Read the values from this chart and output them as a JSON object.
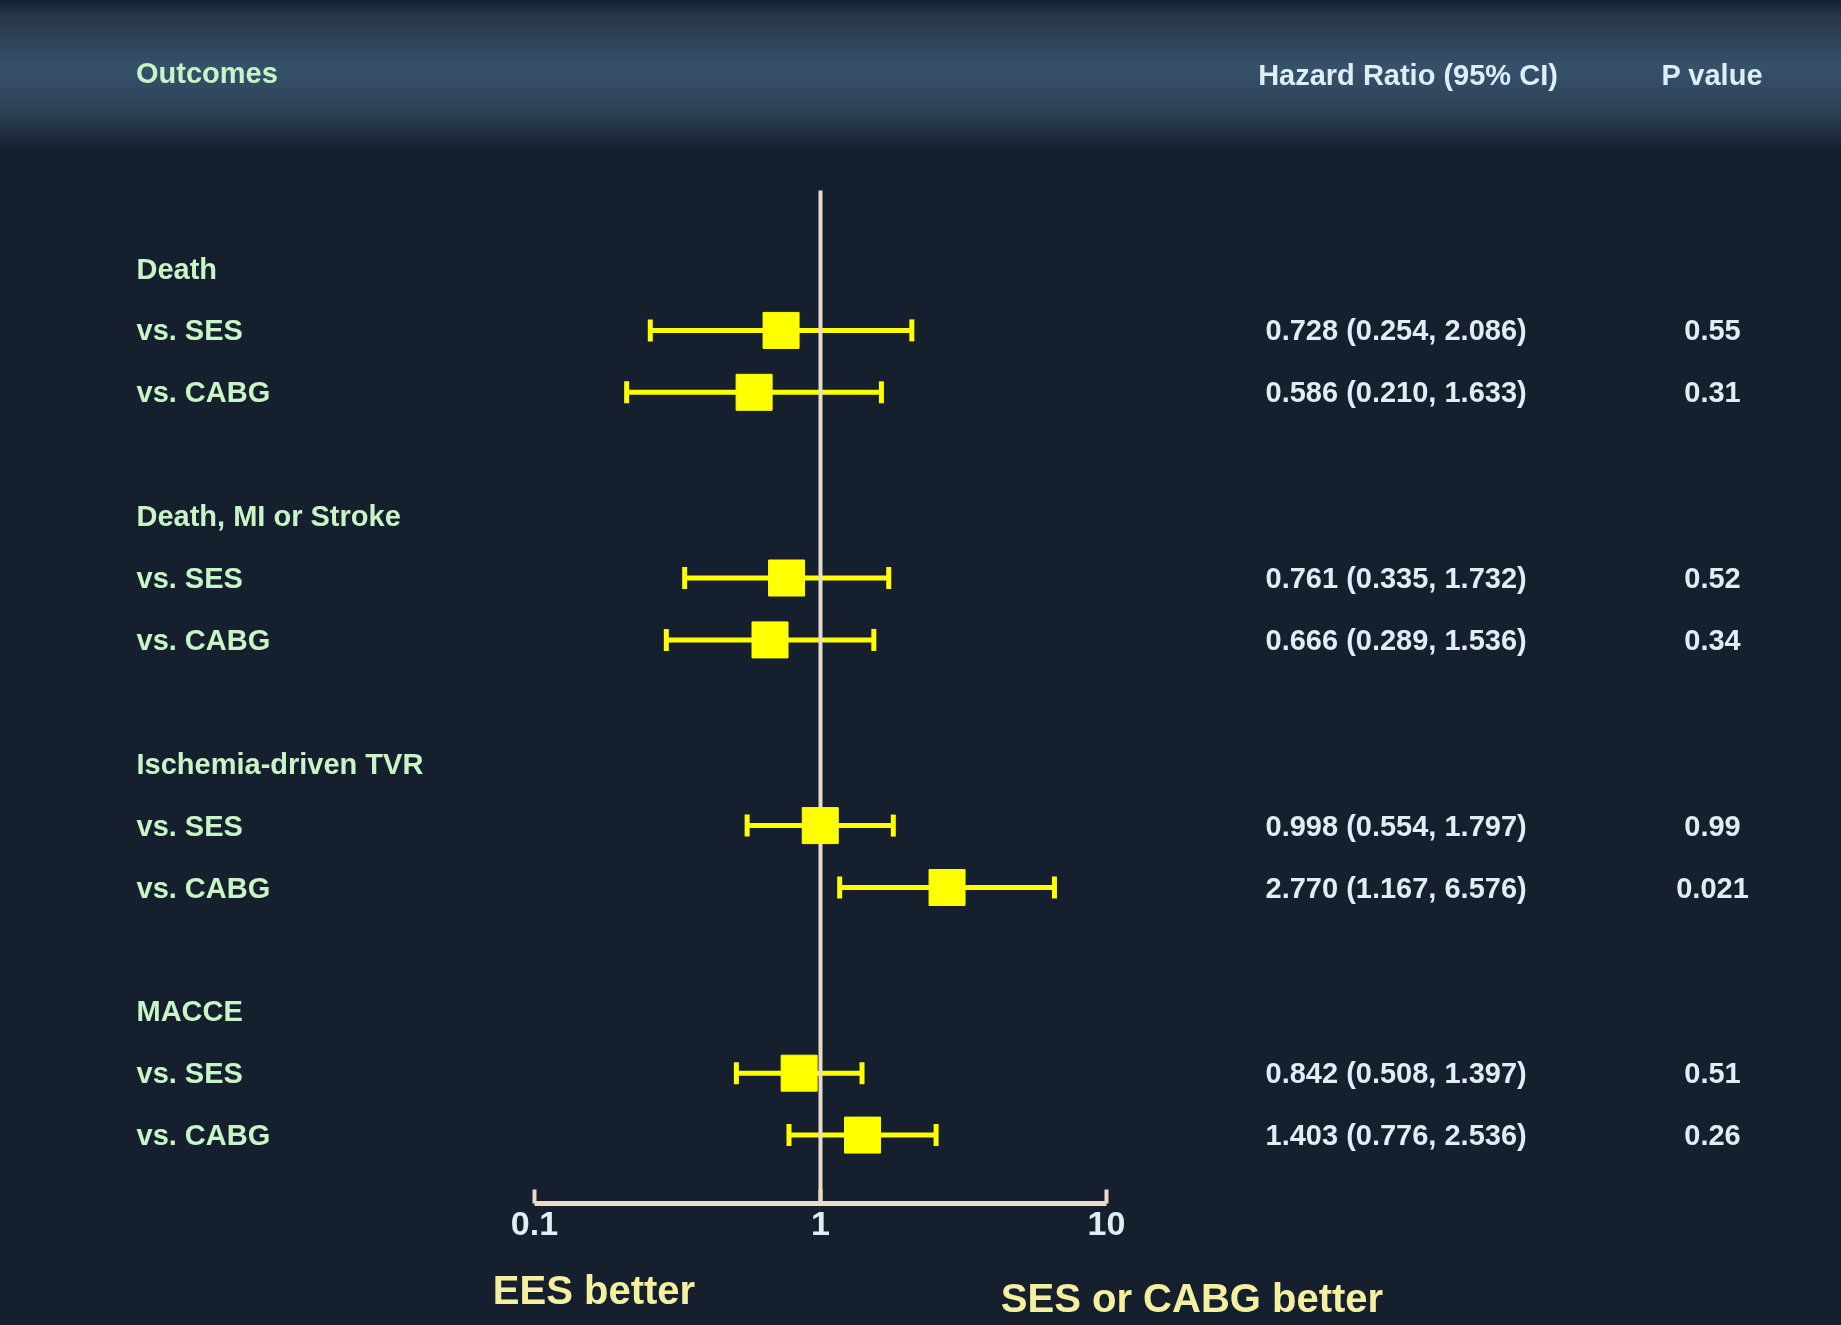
{
  "chart_data": {
    "type": "scatter",
    "orientation": "horizontal",
    "ylabel": "Outcomes",
    "categories": [
      "Death",
      "vs. SES",
      "vs. CABG",
      null,
      "Death, MI or Stroke",
      "vs. SES",
      "vs. CABG",
      null,
      "Ischemia-driven TVR",
      "vs. SES",
      "vs. CABG",
      null,
      "MACCE",
      "vs. SES",
      "vs. CABG"
    ],
    "values": [
      null,
      0.728,
      0.586,
      null,
      null,
      0.761,
      0.666,
      null,
      null,
      0.998,
      2.77,
      null,
      null,
      0.842,
      1.403
    ],
    "errors": [
      null,
      [
        0.254,
        2.086
      ],
      [
        0.21,
        1.633
      ],
      null,
      null,
      [
        0.335,
        1.732
      ],
      [
        0.289,
        1.536
      ],
      null,
      null,
      [
        0.554,
        1.797
      ],
      [
        1.167,
        6.576
      ],
      null,
      null,
      [
        0.508,
        1.397
      ],
      [
        0.776,
        2.536
      ]
    ],
    "value_labels": [
      null,
      "0.728 (0.254, 2.086)",
      "0.586 (0.210, 1.633)",
      null,
      null,
      "0.761 (0.335, 1.732)",
      "0.666 (0.289, 1.536)",
      null,
      null,
      "0.998 (0.554, 1.797)",
      "2.770 (1.167, 6.576)",
      null,
      null,
      "0.842 (0.508, 1.397)",
      "1.403 (0.776, 2.536)"
    ],
    "color": "#ffff00",
    "marker": "square",
    "log": "x",
    "xlim": [
      0.1,
      10
    ],
    "xticks": [
      0.1,
      1,
      10
    ],
    "grid": false,
    "ref_lines": [
      {
        "axis": "x",
        "value": 1,
        "color": "#e8dcc8"
      }
    ],
    "annotations": [
      "Hazard Ratio (95% CI)",
      "P value",
      "EES better",
      "SES or CABG better",
      "0.55",
      "0.31",
      "0.52",
      "0.34",
      "0.99",
      "0.021",
      "0.51",
      "0.26"
    ]
  }
}
